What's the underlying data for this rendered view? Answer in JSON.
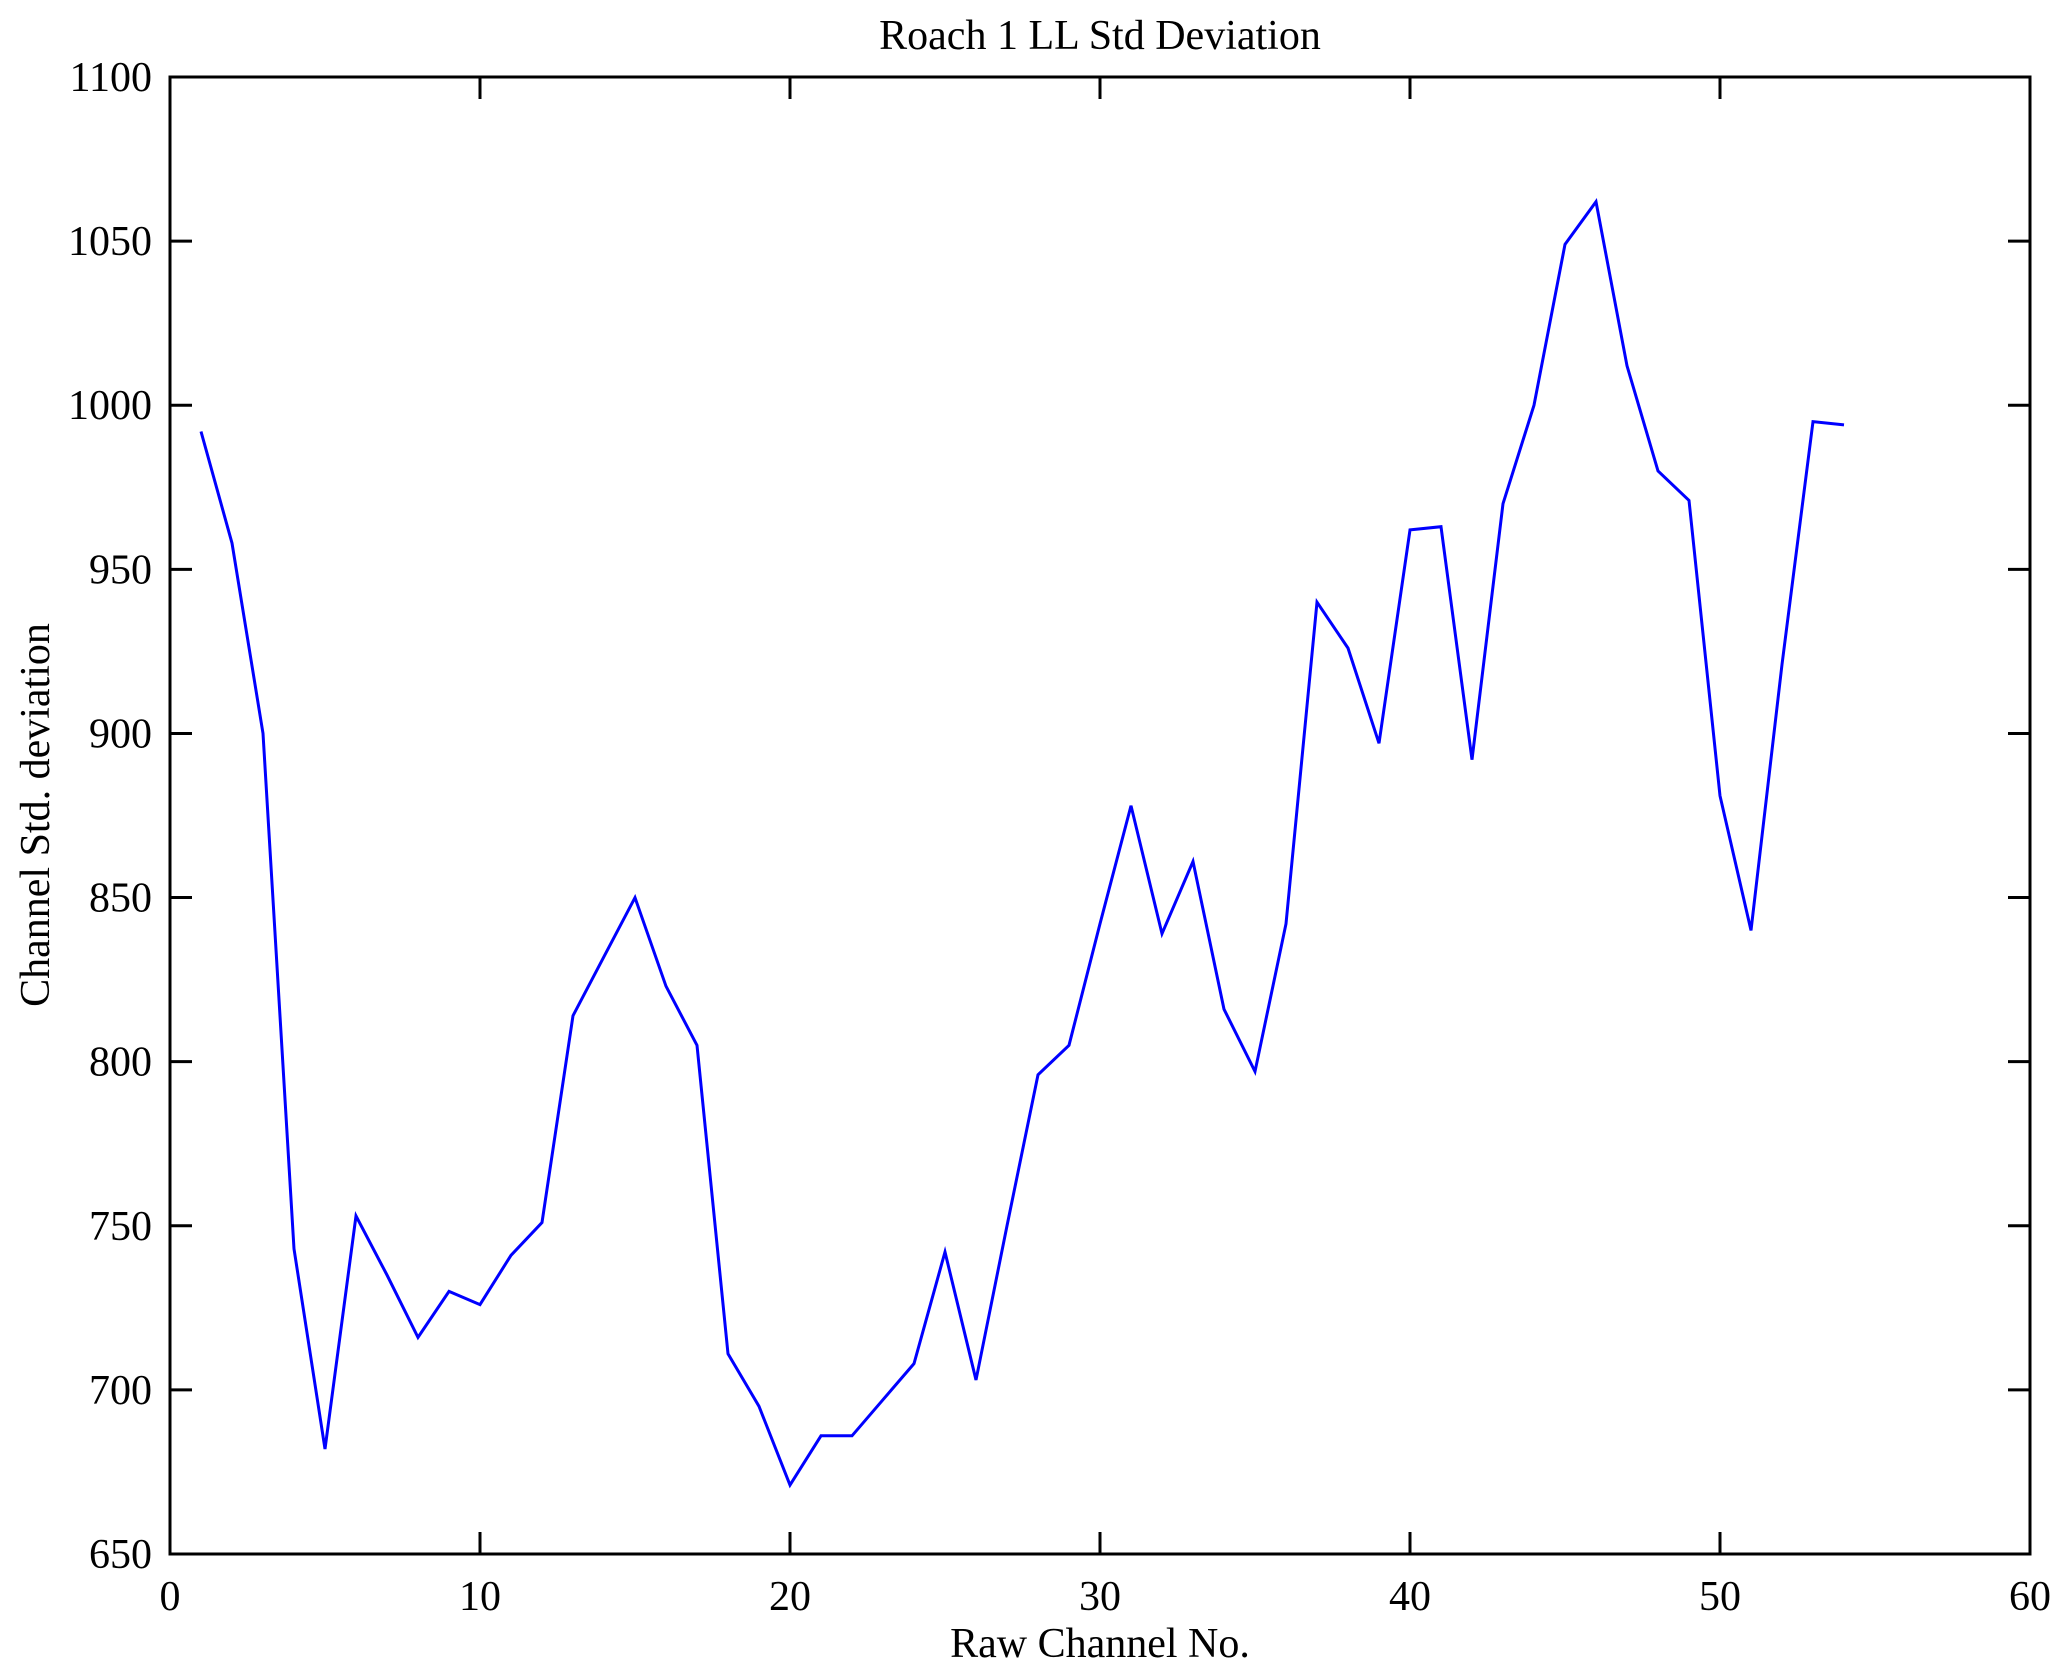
{
  "chart_data": {
    "type": "line",
    "title": "Roach 1 LL Std Deviation",
    "xlabel": "Raw Channel No.",
    "ylabel": "Channel Std. deviation",
    "xlim": [
      0,
      60
    ],
    "ylim": [
      650,
      1100
    ],
    "xticks": [
      0,
      10,
      20,
      30,
      40,
      50,
      60
    ],
    "yticks": [
      650,
      700,
      750,
      800,
      850,
      900,
      950,
      1000,
      1050,
      1100
    ],
    "grid": false,
    "legend": "none",
    "line_color": "#0000FF",
    "axis_color": "#000000",
    "background_color": "#FFFFFF",
    "series_name": "Channel Std deviation",
    "x": [
      1,
      2,
      3,
      4,
      5,
      6,
      7,
      8,
      9,
      10,
      11,
      12,
      13,
      14,
      15,
      16,
      17,
      18,
      19,
      20,
      21,
      22,
      23,
      24,
      25,
      26,
      27,
      28,
      29,
      30,
      31,
      32,
      33,
      34,
      35,
      36,
      37,
      38,
      39,
      40,
      41,
      42,
      43,
      44,
      45,
      46,
      47,
      48,
      49,
      50,
      51,
      52,
      53,
      54
    ],
    "y": [
      992,
      958,
      900,
      743,
      682,
      753,
      735,
      716,
      730,
      726,
      741,
      751,
      814,
      832,
      850,
      823,
      805,
      711,
      695,
      671,
      686,
      686,
      697,
      708,
      742,
      703,
      750,
      796,
      805,
      842,
      878,
      839,
      861,
      816,
      797,
      842,
      940,
      926,
      897,
      962,
      963,
      892,
      970,
      1000,
      1049,
      1062,
      1012,
      980,
      971,
      881,
      840,
      921,
      995,
      994
    ]
  }
}
